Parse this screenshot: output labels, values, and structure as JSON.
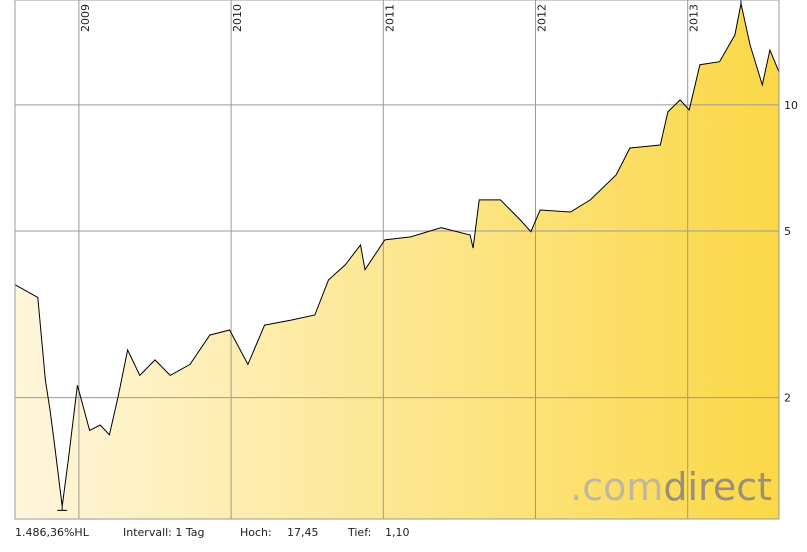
{
  "chart_data": {
    "type": "area",
    "x": [
      2008.58,
      2008.73,
      2008.78,
      2008.81,
      2008.84,
      2008.89,
      2008.93,
      2008.99,
      2009.07,
      2009.14,
      2009.2,
      2009.26,
      2009.32,
      2009.4,
      2009.5,
      2009.6,
      2009.73,
      2009.86,
      2009.99,
      2010.11,
      2010.22,
      2010.39,
      2010.55,
      2010.64,
      2010.75,
      2010.85,
      2010.88,
      2011.01,
      2011.18,
      2011.38,
      2011.57,
      2011.59,
      2011.63,
      2011.77,
      2011.9,
      2011.97,
      2012.03,
      2012.23,
      2012.36,
      2012.53,
      2012.62,
      2012.82,
      2012.87,
      2012.95,
      2013.01,
      2013.08,
      2013.21,
      2013.31,
      2013.35,
      2013.41,
      2013.49,
      2013.54,
      2013.6
    ],
    "series": [
      {
        "color": "#000000",
        "values": [
          3.72,
          3.47,
          2.2,
          1.87,
          1.54,
          1.1,
          1.42,
          2.14,
          1.67,
          1.72,
          1.63,
          2.03,
          2.6,
          2.26,
          2.46,
          2.26,
          2.4,
          2.82,
          2.9,
          2.4,
          2.98,
          3.06,
          3.15,
          3.82,
          4.15,
          4.63,
          4.04,
          4.76,
          4.84,
          5.09,
          4.89,
          4.55,
          5.93,
          5.93,
          5.31,
          4.98,
          5.61,
          5.55,
          5.93,
          6.81,
          7.89,
          8.02,
          9.62,
          10.28,
          9.73,
          12.47,
          12.68,
          14.69,
          17.45,
          13.9,
          11.16,
          13.52,
          11.99
        ]
      }
    ],
    "xlim": [
      2008.58,
      2013.6
    ],
    "xticks": [
      2009,
      2010,
      2011,
      2012,
      2013
    ],
    "ylim": [
      1.026,
      17.8
    ],
    "yticks": [
      2,
      5,
      10
    ],
    "log_scale": true,
    "grid": true,
    "fill_colors": [
      "#fff6dc",
      "#fbd847"
    ]
  },
  "footer": {
    "change": "1.486,36%HL",
    "interval": "Intervall: 1 Tag",
    "high_label": "Hoch:",
    "high": "17,45",
    "low_label": "Tief:",
    "low": "1,10"
  },
  "watermark": {
    "prefix": ".com",
    "suffix": "direct"
  }
}
